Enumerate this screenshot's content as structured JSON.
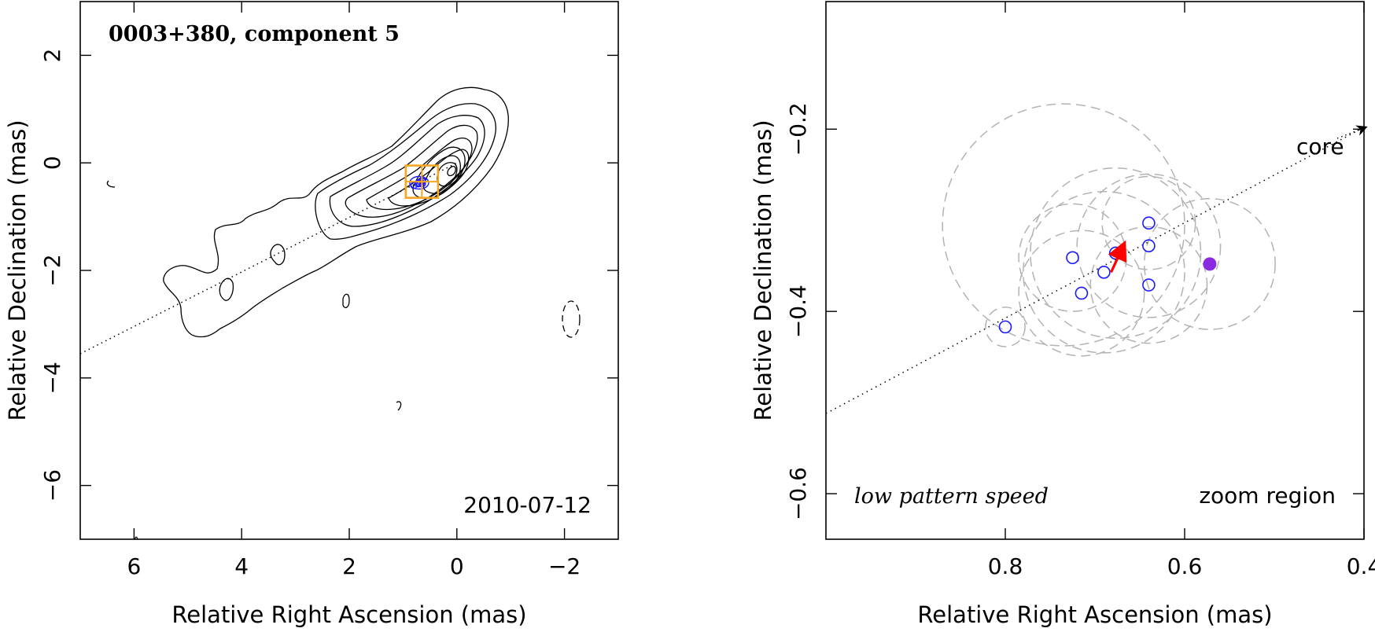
{
  "chart_data": [
    {
      "type": "contour",
      "title": "0003+380, component 5",
      "epoch": "2010-07-12",
      "xlabel": "Relative Right Ascension (mas)",
      "ylabel": "Relative Declination (mas)",
      "xlim": [
        7,
        -3
      ],
      "ylim": [
        -7,
        3
      ],
      "x_ticks": [
        6,
        4,
        2,
        0,
        -2
      ],
      "y_ticks": [
        2,
        0,
        -2,
        -4,
        -6
      ],
      "x_tick_labels": [
        "6",
        "4",
        "2",
        "0",
        "−2"
      ],
      "y_tick_labels": [
        "2",
        "0",
        "−2",
        "−4",
        "−6"
      ],
      "core_position": [
        0,
        0
      ],
      "jet_line": [
        [
          7,
          -3.55
        ],
        [
          0,
          0
        ]
      ],
      "contour_peak_ra_dec": [
        0,
        0
      ],
      "contour_levels_count": 10,
      "zoom_box": {
        "ra": [
          0.95,
          0.35
        ],
        "dec": [
          -0.05,
          -0.65
        ]
      },
      "component_positions_ra_dec": [
        [
          0.8,
          -0.42
        ],
        [
          0.725,
          -0.39
        ],
        [
          0.715,
          -0.37
        ],
        [
          0.69,
          -0.385
        ],
        [
          0.675,
          -0.355
        ],
        [
          0.64,
          -0.33
        ],
        [
          0.64,
          -0.35
        ],
        [
          0.64,
          -0.385
        ]
      ],
      "colors": {
        "contour": "#000000",
        "zoom_box": "#f5a623",
        "components": "#1a1aff",
        "motion": "#ff0000"
      }
    },
    {
      "type": "scatter",
      "label_left": "low pattern speed",
      "label_right": "zoom region",
      "core_label": "core",
      "xlabel": "Relative Right Ascension (mas)",
      "ylabel": "Relative Declination (mas)",
      "xlim": [
        1.0,
        0.4
      ],
      "ylim": [
        -0.65,
        -0.06
      ],
      "x_ticks": [
        0.8,
        0.6,
        0.4
      ],
      "y_ticks": [
        -0.2,
        -0.4,
        -0.6
      ],
      "x_tick_labels": [
        "0.8",
        "0.6",
        "0.4"
      ],
      "y_tick_labels": [
        "−0.2",
        "−0.4",
        "−0.6"
      ],
      "components": [
        {
          "x": 0.8,
          "y": -0.417
        },
        {
          "x": 0.725,
          "y": -0.341
        },
        {
          "x": 0.715,
          "y": -0.38
        },
        {
          "x": 0.69,
          "y": -0.357
        },
        {
          "x": 0.677,
          "y": -0.336
        },
        {
          "x": 0.64,
          "y": -0.303
        },
        {
          "x": 0.64,
          "y": -0.328
        },
        {
          "x": 0.64,
          "y": -0.371
        }
      ],
      "filled_component": {
        "x": 0.572,
        "y": -0.348
      },
      "uncertainty_circles": [
        {
          "x": 0.8,
          "y": -0.417,
          "r": 0.022
        },
        {
          "x": 0.725,
          "y": -0.341,
          "r": 0.06
        },
        {
          "x": 0.715,
          "y": -0.38,
          "r": 0.07
        },
        {
          "x": 0.69,
          "y": -0.357,
          "r": 0.09
        },
        {
          "x": 0.677,
          "y": -0.336,
          "r": 0.095
        },
        {
          "x": 0.64,
          "y": -0.303,
          "r": 0.052
        },
        {
          "x": 0.64,
          "y": -0.328,
          "r": 0.08
        },
        {
          "x": 0.64,
          "y": -0.371,
          "r": 0.065
        },
        {
          "x": 0.572,
          "y": -0.348,
          "r": 0.073
        },
        {
          "x": 0.735,
          "y": -0.305,
          "r": 0.135
        }
      ],
      "motion_vector": {
        "from": [
          0.682,
          -0.357
        ],
        "to": [
          0.668,
          -0.327
        ]
      },
      "jet_line": [
        [
          1.0,
          -0.512
        ],
        [
          0.4,
          -0.198
        ]
      ],
      "colors": {
        "components": "#1a1aff",
        "filled": "#8a2be2",
        "uncertainty": "#b3b3b3",
        "motion": "#ff0000"
      }
    }
  ]
}
